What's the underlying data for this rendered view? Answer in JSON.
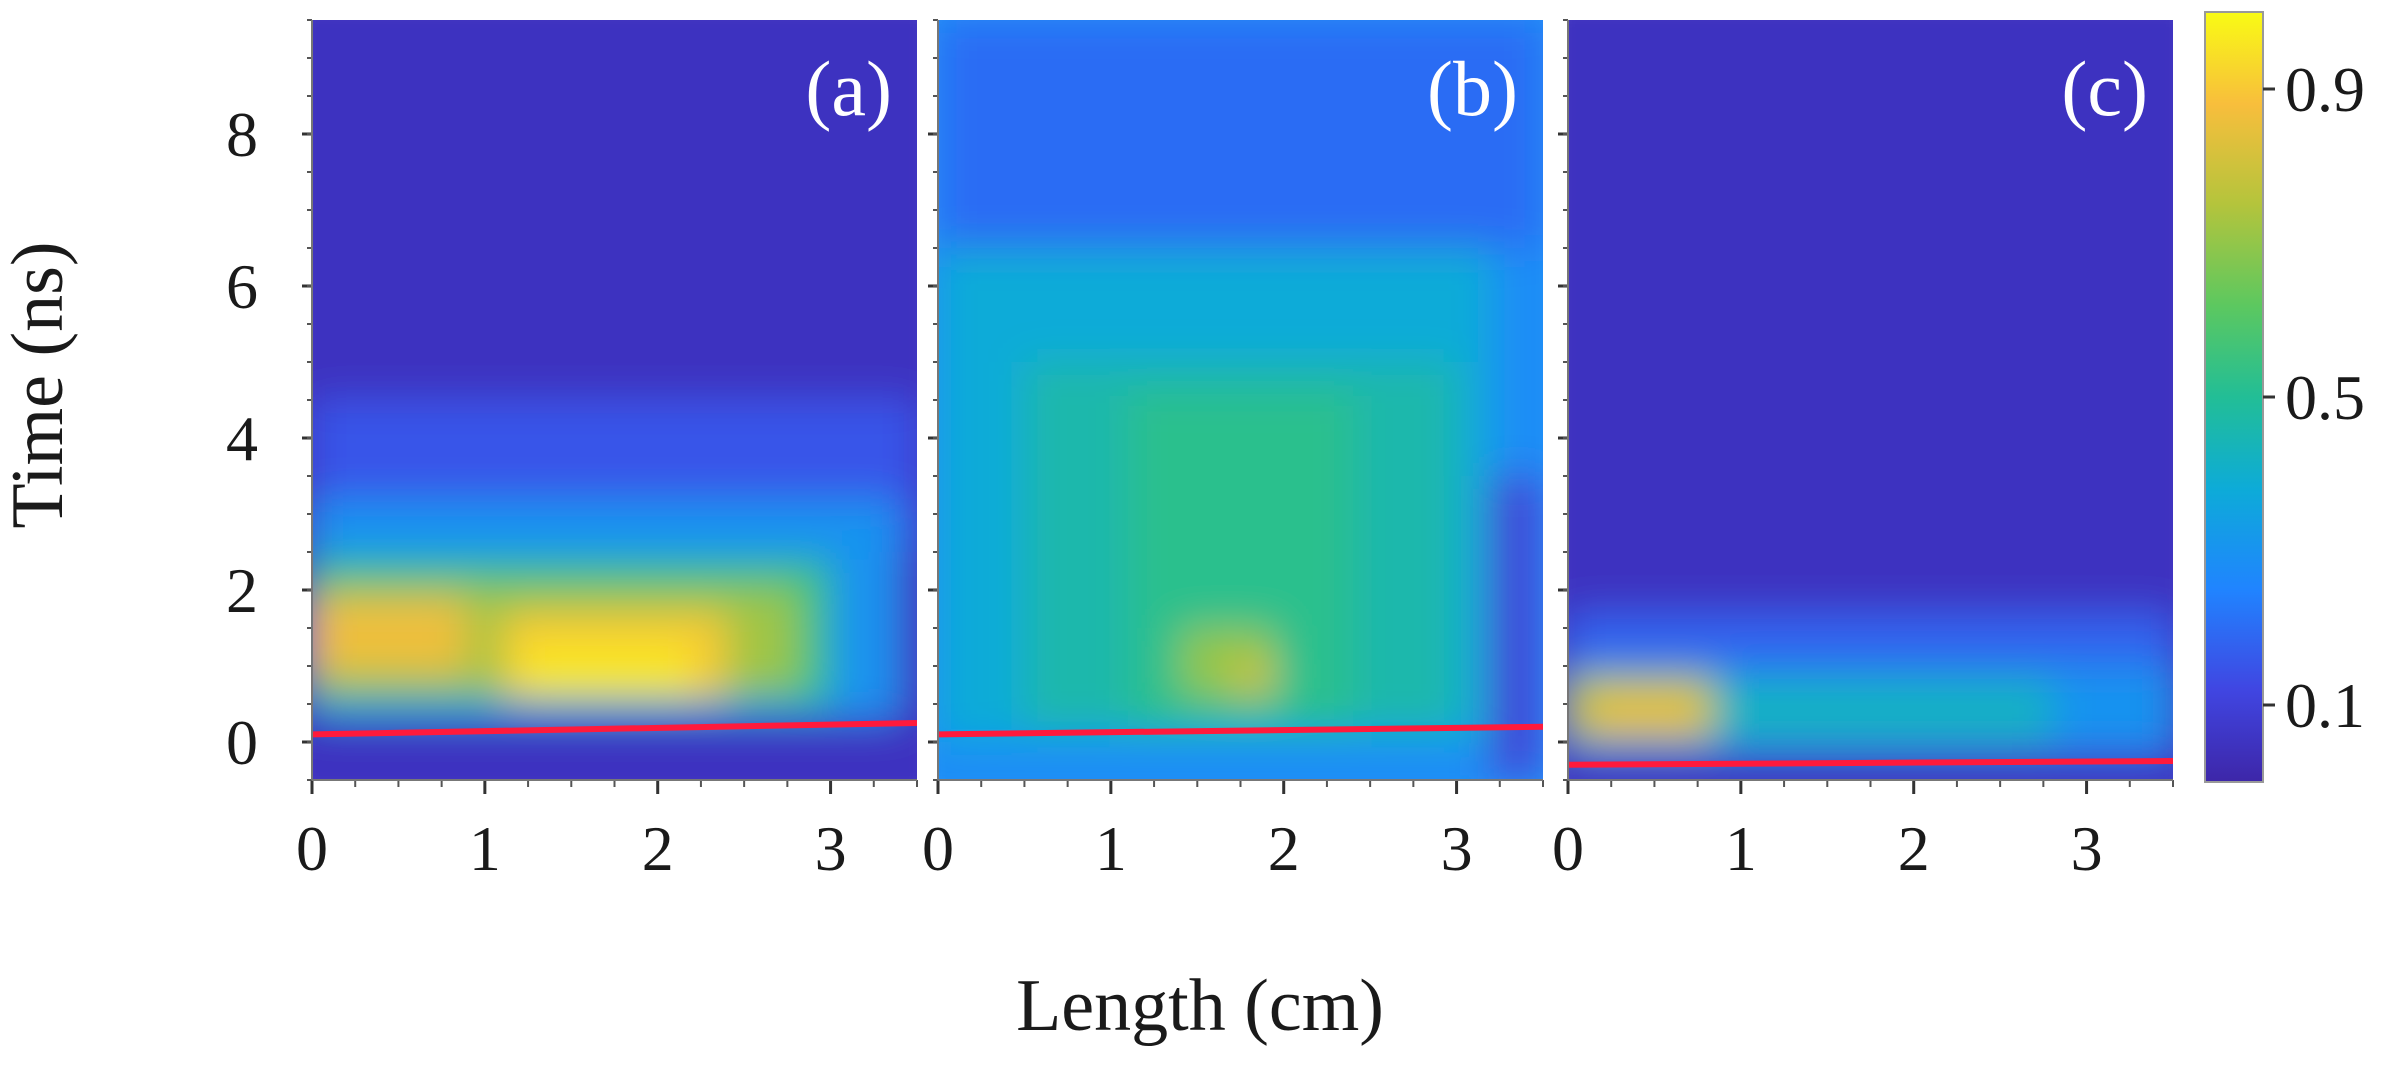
{
  "chart_data": {
    "type": "heatmap",
    "xlabel": "Length (cm)",
    "ylabel": "Time (ns)",
    "xlim": [
      0,
      3.5
    ],
    "ylim": [
      -0.5,
      9.5
    ],
    "x_ticks": [
      "0",
      "1",
      "2",
      "3"
    ],
    "y_ticks": [
      "0",
      "2",
      "4",
      "6",
      "8"
    ],
    "colorbar": {
      "tick_labels": [
        "0.1",
        "0.5",
        "0.9"
      ],
      "tick_values": [
        0.1,
        0.5,
        0.9
      ],
      "range": [
        0,
        1
      ]
    },
    "panels": [
      {
        "label": "(a)",
        "baseline_time": [
          0.1,
          0.25
        ],
        "regions": [
          {
            "x": [
              0.0,
              3.5
            ],
            "t": [
              -0.5,
              9.5
            ],
            "value": 0.05
          },
          {
            "x": [
              0.0,
              3.5
            ],
            "t": [
              2.5,
              4.5
            ],
            "value": 0.15
          },
          {
            "x": [
              0.0,
              3.4
            ],
            "t": [
              0.3,
              3.2
            ],
            "value": 0.3
          },
          {
            "x": [
              0.0,
              3.0
            ],
            "t": [
              0.5,
              2.4
            ],
            "value": 0.55
          },
          {
            "x": [
              0.0,
              2.8
            ],
            "t": [
              0.7,
              2.0
            ],
            "value": 0.72
          },
          {
            "x": [
              0.0,
              0.9
            ],
            "t": [
              0.9,
              1.9
            ],
            "value": 0.86
          },
          {
            "x": [
              1.1,
              2.4
            ],
            "t": [
              0.6,
              1.7
            ],
            "value": 0.9
          },
          {
            "x": [
              1.2,
              2.2
            ],
            "t": [
              0.6,
              1.3
            ],
            "value": 0.96
          }
        ]
      },
      {
        "label": "(b)",
        "baseline_time": [
          0.1,
          0.2
        ],
        "regions": [
          {
            "x": [
              0.0,
              3.5
            ],
            "t": [
              -0.5,
              9.5
            ],
            "value": 0.28
          },
          {
            "x": [
              0.0,
              3.5
            ],
            "t": [
              6.5,
              9.5
            ],
            "value": 0.2
          },
          {
            "x": [
              0.0,
              3.2
            ],
            "t": [
              0.0,
              6.5
            ],
            "value": 0.38
          },
          {
            "x": [
              0.5,
              3.0
            ],
            "t": [
              0.2,
              5.0
            ],
            "value": 0.46
          },
          {
            "x": [
              1.1,
              2.4
            ],
            "t": [
              0.2,
              4.6
            ],
            "value": 0.52
          },
          {
            "x": [
              1.4,
              1.95
            ],
            "t": [
              0.6,
              1.5
            ],
            "value": 0.7
          },
          {
            "x": [
              1.7,
              1.95
            ],
            "t": [
              0.6,
              1.1
            ],
            "value": 0.8
          },
          {
            "x": [
              3.2,
              3.5
            ],
            "t": [
              -0.5,
              3.5
            ],
            "value": 0.1
          }
        ]
      },
      {
        "label": "(c)",
        "baseline_time": [
          -0.3,
          -0.25
        ],
        "regions": [
          {
            "x": [
              0.0,
              3.5
            ],
            "t": [
              -0.5,
              9.5
            ],
            "value": 0.05
          },
          {
            "x": [
              0.0,
              3.5
            ],
            "t": [
              -0.2,
              1.7
            ],
            "value": 0.18
          },
          {
            "x": [
              0.0,
              3.5
            ],
            "t": [
              -0.1,
              1.0
            ],
            "value": 0.3
          },
          {
            "x": [
              0.0,
              2.8
            ],
            "t": [
              0.0,
              0.8
            ],
            "value": 0.42
          },
          {
            "x": [
              0.0,
              0.85
            ],
            "t": [
              0.0,
              0.9
            ],
            "value": 0.72
          },
          {
            "x": [
              0.1,
              0.8
            ],
            "t": [
              0.15,
              0.65
            ],
            "value": 0.86
          }
        ]
      }
    ]
  }
}
